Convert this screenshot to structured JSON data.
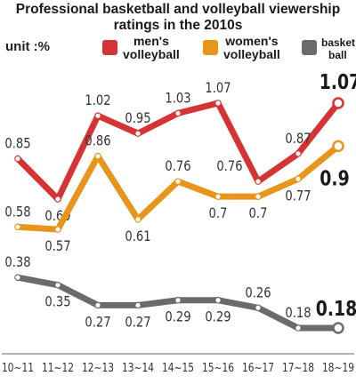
{
  "header": {
    "title_line1": "Professional basketball and volleyball viewership",
    "title_line2": "ratings in the 2010s",
    "unit": "unit :%"
  },
  "legend": [
    {
      "label_line1": "men's",
      "label_line2": "volleyball",
      "color": "#d63434"
    },
    {
      "label_line1": "women's",
      "label_line2": "volleyball",
      "color": "#e8951b"
    },
    {
      "label_line1": "basket",
      "label_line2": "ball",
      "color": "#6b6b6b"
    }
  ],
  "chart_data": {
    "type": "line",
    "title": "Professional basketball and volleyball viewership ratings in the 2010s",
    "xlabel": "",
    "ylabel": "unit :%",
    "categories": [
      "10~11",
      "11~12",
      "12~13",
      "13~14",
      "14~15",
      "15~16",
      "16~17",
      "17~18",
      "18~19"
    ],
    "series": [
      {
        "name": "men's volleyball",
        "color": "#d63434",
        "values": [
          0.85,
          0.69,
          1.02,
          0.95,
          1.03,
          1.07,
          0.76,
          0.87,
          1.07
        ],
        "labels": [
          "0.85",
          "0.69",
          "1.02",
          "0.95",
          "1.03",
          "1.07",
          "0.76",
          "0.87",
          "1.07"
        ]
      },
      {
        "name": "women's volleyball",
        "color": "#e8951b",
        "values": [
          0.58,
          0.57,
          0.86,
          0.61,
          0.76,
          0.7,
          0.7,
          0.77,
          0.9
        ],
        "labels": [
          "0.58",
          "0.57",
          "0.86",
          "0.61",
          "0.76",
          "0.7",
          "0.7",
          "0.77",
          "0.9"
        ]
      },
      {
        "name": "basketball",
        "color": "#6b6b6b",
        "values": [
          0.38,
          0.35,
          0.27,
          0.27,
          0.29,
          0.29,
          0.26,
          0.18,
          0.18
        ],
        "labels": [
          "0.38",
          "0.35",
          "0.27",
          "0.27",
          "0.29",
          "0.29",
          "0.26",
          "0.18",
          "0.18"
        ]
      }
    ],
    "grid": false,
    "legend_position": "top-right"
  }
}
